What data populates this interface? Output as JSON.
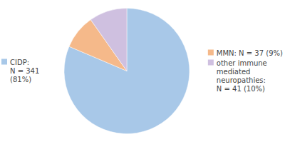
{
  "chart_data": {
    "type": "pie",
    "categories": [
      "CIDP:\nN = 341\n(81%)",
      "MMN: N = 37 (9%)",
      "other immune\nmediated\nneuropathies:\nN = 41 (10%)"
    ],
    "values": [
      341,
      37,
      41
    ],
    "colors": [
      "#a8c8e8",
      "#f5b98a",
      "#cfc0e0"
    ]
  }
}
